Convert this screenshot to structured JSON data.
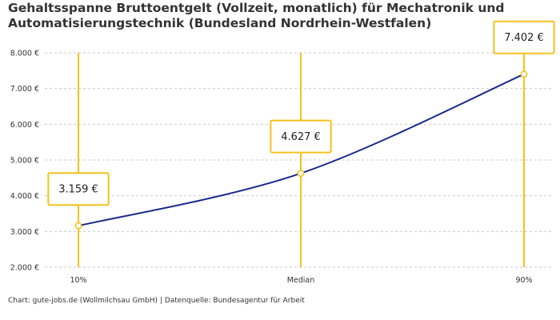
{
  "title": "Gehaltsspanne Bruttoentgelt (Vollzeit, monatlich) für Mechatronik und Automatisierungstechnik (Bundesland Nordrhein-Westfalen)",
  "source": "Chart: gute-jobs.de (Wollmilchsau GmbH) | Datenquelle: Bundesagentur für Arbeit",
  "colors": {
    "line": "#1a2a8c",
    "accent": "#f5c21b",
    "grid": "#c8c8c8"
  },
  "chart_data": {
    "type": "line",
    "categories": [
      "10%",
      "Median",
      "90%"
    ],
    "values": [
      3159,
      4627,
      7402
    ],
    "value_labels": [
      "3.159 €",
      "4.627 €",
      "7.402 €"
    ],
    "ylim": [
      2000,
      8000
    ],
    "yticks": [
      2000,
      3000,
      4000,
      5000,
      6000,
      7000,
      8000
    ],
    "ytick_labels": [
      "2.000 €",
      "3.000 €",
      "4.000 €",
      "5.000 €",
      "6.000 €",
      "7.000 €",
      "8.000 €"
    ],
    "grid": true,
    "xlabel": "",
    "ylabel": ""
  }
}
